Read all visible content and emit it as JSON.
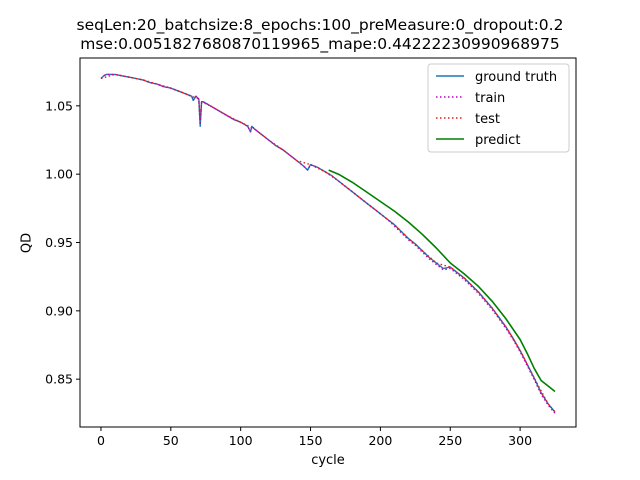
{
  "chart_data": {
    "type": "line",
    "title_line1": "seqLen:20_batchsize:8_epochs:100_preMeasure:0_dropout:0.2",
    "title_line2": "mse:0.005182768087011​9965_mape:0.44222230990968975",
    "xlabel": "cycle",
    "ylabel": "QD",
    "xlim": [
      -15,
      340
    ],
    "ylim": [
      0.815,
      1.085
    ],
    "xticks": [
      0,
      50,
      100,
      150,
      200,
      250,
      300
    ],
    "yticks": [
      0.85,
      0.9,
      0.95,
      1.0,
      1.05
    ],
    "ytick_labels": [
      "0.85",
      "0.90",
      "0.95",
      "1.00",
      "1.05"
    ],
    "grid": false,
    "legend_position": "top-right",
    "series": [
      {
        "name": "ground truth",
        "color": "#1f77b4",
        "style": "solid",
        "x": [
          0,
          2,
          4,
          6,
          8,
          10,
          15,
          20,
          25,
          30,
          35,
          40,
          45,
          50,
          55,
          60,
          65,
          66,
          68,
          70,
          71,
          72,
          73,
          75,
          80,
          85,
          90,
          95,
          100,
          105,
          107,
          108,
          110,
          115,
          120,
          125,
          130,
          135,
          140,
          145,
          148,
          150,
          155,
          160,
          165,
          170,
          175,
          180,
          185,
          190,
          195,
          200,
          205,
          210,
          215,
          220,
          225,
          230,
          235,
          240,
          245,
          250,
          255,
          260,
          265,
          270,
          275,
          280,
          285,
          290,
          295,
          300,
          305,
          310,
          315,
          320,
          325
        ],
        "y": [
          1.07,
          1.072,
          1.073,
          1.073,
          1.073,
          1.073,
          1.072,
          1.071,
          1.07,
          1.069,
          1.067,
          1.066,
          1.064,
          1.063,
          1.061,
          1.059,
          1.057,
          1.054,
          1.057,
          1.055,
          1.035,
          1.053,
          1.053,
          1.052,
          1.049,
          1.046,
          1.043,
          1.04,
          1.038,
          1.035,
          1.031,
          1.035,
          1.033,
          1.029,
          1.025,
          1.021,
          1.018,
          1.014,
          1.01,
          1.006,
          1.003,
          1.007,
          1.005,
          1.002,
          0.999,
          0.995,
          0.991,
          0.987,
          0.983,
          0.979,
          0.975,
          0.971,
          0.967,
          0.963,
          0.958,
          0.953,
          0.949,
          0.944,
          0.939,
          0.935,
          0.931,
          0.932,
          0.928,
          0.924,
          0.919,
          0.914,
          0.908,
          0.902,
          0.895,
          0.888,
          0.88,
          0.871,
          0.861,
          0.851,
          0.84,
          0.832,
          0.826
        ]
      },
      {
        "name": "train",
        "color": "#bf00bf",
        "style": "dotted",
        "x": [
          0,
          2,
          4,
          6,
          8,
          10,
          15,
          20,
          25,
          30,
          35,
          40,
          45,
          50,
          55,
          60,
          65,
          66,
          68,
          70,
          71,
          72,
          73,
          75,
          80,
          85,
          90,
          95,
          100,
          105,
          107,
          108,
          110,
          115,
          120,
          125,
          130,
          135,
          140,
          145,
          148,
          150,
          155,
          160,
          165,
          170,
          175,
          180,
          185,
          190,
          195,
          200,
          205,
          210,
          215,
          220,
          225,
          230,
          235,
          240,
          245,
          250,
          255,
          260,
          265,
          270,
          275,
          280,
          285,
          290,
          295,
          300,
          305,
          310,
          315,
          320,
          325
        ],
        "y": [
          1.07,
          1.072,
          1.073,
          1.073,
          1.073,
          1.073,
          1.072,
          1.071,
          1.07,
          1.069,
          1.067,
          1.066,
          1.064,
          1.063,
          1.061,
          1.059,
          1.057,
          1.054,
          1.057,
          1.055,
          1.036,
          1.053,
          1.053,
          1.052,
          1.049,
          1.046,
          1.043,
          1.04,
          1.038,
          1.035,
          1.031,
          1.035,
          1.033,
          1.029,
          1.025,
          1.021,
          1.018,
          1.014,
          1.01,
          1.006,
          1.003,
          1.007,
          1.005,
          1.002,
          0.999,
          0.995,
          0.991,
          0.987,
          0.983,
          0.979,
          0.975,
          0.971,
          0.967,
          0.962,
          0.957,
          0.952,
          0.948,
          0.943,
          0.938,
          0.934,
          0.93,
          0.931,
          0.927,
          0.923,
          0.918,
          0.913,
          0.907,
          0.901,
          0.894,
          0.887,
          0.879,
          0.87,
          0.86,
          0.85,
          0.839,
          0.831,
          0.825
        ]
      },
      {
        "name": "test",
        "color": "#e41a1c",
        "style": "dotted",
        "x": [
          0,
          10,
          20,
          30,
          40,
          50,
          60,
          70,
          71,
          72,
          80,
          90,
          100,
          110,
          120,
          130,
          140,
          150,
          160,
          170,
          180,
          190,
          200,
          210,
          220,
          230,
          240,
          250,
          260,
          270,
          280,
          290,
          300,
          310,
          320,
          325
        ],
        "y": [
          1.07,
          1.073,
          1.071,
          1.069,
          1.066,
          1.063,
          1.059,
          1.055,
          1.04,
          1.053,
          1.049,
          1.043,
          1.038,
          1.033,
          1.025,
          1.018,
          1.01,
          1.007,
          1.002,
          0.995,
          0.987,
          0.979,
          0.971,
          0.963,
          0.953,
          0.944,
          0.935,
          0.932,
          0.924,
          0.914,
          0.902,
          0.888,
          0.871,
          0.851,
          0.832,
          0.826
        ]
      },
      {
        "name": "predict",
        "color": "#008000",
        "style": "solid",
        "x": [
          163,
          170,
          180,
          190,
          200,
          210,
          220,
          230,
          240,
          250,
          260,
          270,
          280,
          290,
          300,
          305,
          310,
          315,
          320,
          325
        ],
        "y": [
          1.003,
          1.0,
          0.994,
          0.987,
          0.98,
          0.973,
          0.965,
          0.956,
          0.946,
          0.935,
          0.927,
          0.918,
          0.907,
          0.894,
          0.879,
          0.869,
          0.858,
          0.849,
          0.845,
          0.841
        ]
      }
    ]
  }
}
